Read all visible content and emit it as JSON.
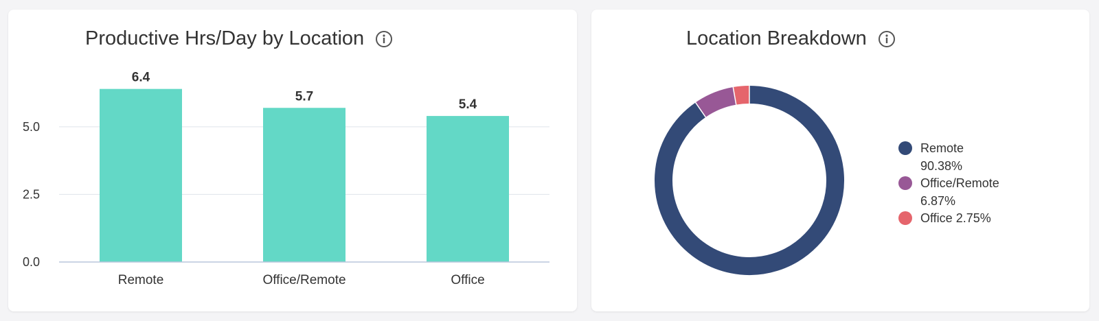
{
  "bar_card": {
    "title": "Productive Hrs/Day by Location",
    "info_icon": "info-icon"
  },
  "donut_card": {
    "title": "Location Breakdown",
    "info_icon": "info-icon"
  },
  "colors": {
    "bar": "#63d8c6",
    "remote": "#334a77",
    "office_remote": "#985896",
    "office": "#e5656c"
  },
  "chart_data": [
    {
      "type": "bar",
      "title": "Productive Hrs/Day by Location",
      "categories": [
        "Remote",
        "Office/Remote",
        "Office"
      ],
      "values": [
        6.4,
        5.7,
        5.4
      ],
      "data_labels": [
        "6.4",
        "5.7",
        "5.4"
      ],
      "yticks": [
        "0.0",
        "2.5",
        "5.0"
      ],
      "ylim": [
        0,
        7
      ],
      "grid": true
    },
    {
      "type": "pie",
      "subtype": "donut",
      "title": "Location Breakdown",
      "labels": [
        "Remote",
        "Office/Remote",
        "Office"
      ],
      "values": [
        90.38,
        6.87,
        2.75
      ],
      "value_labels": [
        "90.38%",
        "6.87%",
        "2.75%"
      ],
      "legend_position": "right"
    }
  ]
}
